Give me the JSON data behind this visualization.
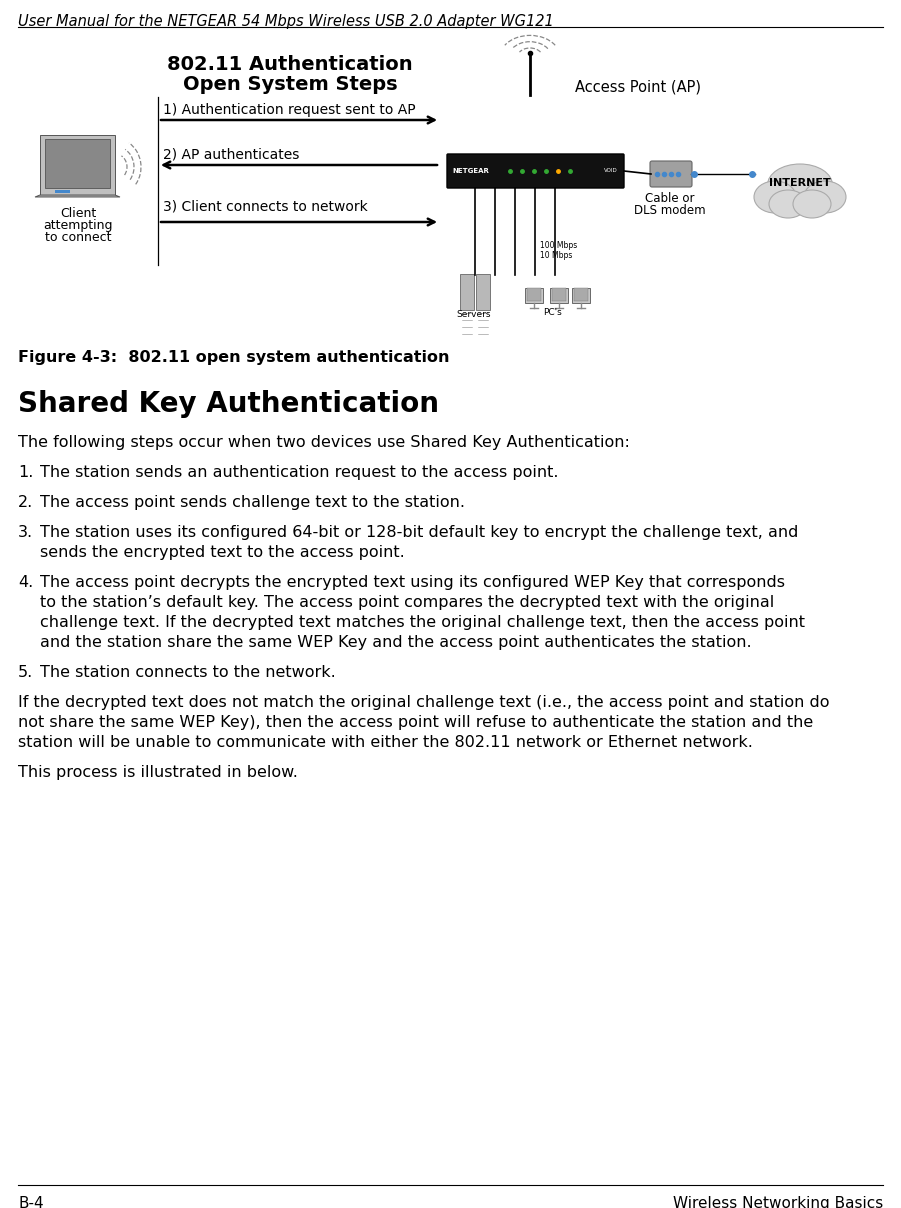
{
  "header_text": "User Manual for the NETGEAR 54 Mbps Wireless USB 2.0 Adapter WG121",
  "footer_left": "B-4",
  "footer_right": "Wireless Networking Basics",
  "diagram_title_line1": "802.11 Authentication",
  "diagram_title_line2": "Open System Steps",
  "step1_label": "1) Authentication request sent to AP",
  "step2_label": "2) AP authenticates",
  "step3_label": "3) Client connects to network",
  "ap_label": "Access Point (AP)",
  "client_label_line1": "Client",
  "client_label_line2": "attempting",
  "client_label_line3": "to connect",
  "cable_modem_label_line1": "Cable or",
  "cable_modem_label_line2": "DLS modem",
  "internet_label": "INTERNET",
  "servers_label": "Servers",
  "pcs_label": "PC's",
  "speed_label1": "100 Mbps",
  "speed_label2": "10 Mbps",
  "figure_caption": "Figure 4-3:  802.11 open system authentication",
  "section_title": "Shared Key Authentication",
  "para1": "The following steps occur when two devices use Shared Key Authentication:",
  "item1": "The station sends an authentication request to the access point.",
  "item2": "The access point sends challenge text to the station.",
  "item3a": "The station uses its configured 64-bit or 128-bit default key to encrypt the challenge text, and",
  "item3b": "sends the encrypted text to the access point.",
  "item4a": "The access point decrypts the encrypted text using its configured WEP Key that corresponds",
  "item4b": "to the station’s default key. The access point compares the decrypted text with the original",
  "item4c": "challenge text. If the decrypted text matches the original challenge text, then the access point",
  "item4d": "and the station share the same WEP Key and the access point authenticates the station. ",
  "item5": "The station connects to the network.",
  "para2a": "If the decrypted text does not match the original challenge text (i.e., the access point and station do",
  "para2b": "not share the same WEP Key), then the access point will refuse to authenticate the station and the",
  "para2c": "station will be unable to communicate with either the 802.11 network or Ethernet network.",
  "para3": "This process is illustrated in below.",
  "bg_color": "#ffffff",
  "text_color": "#000000",
  "header_font_size": 10.5,
  "footer_font_size": 11,
  "body_font_size": 11.5,
  "section_font_size": 20,
  "figure_caption_font_size": 11.5,
  "diagram_title_font_size": 14,
  "diagram_step_font_size": 10,
  "label_font_size": 10
}
